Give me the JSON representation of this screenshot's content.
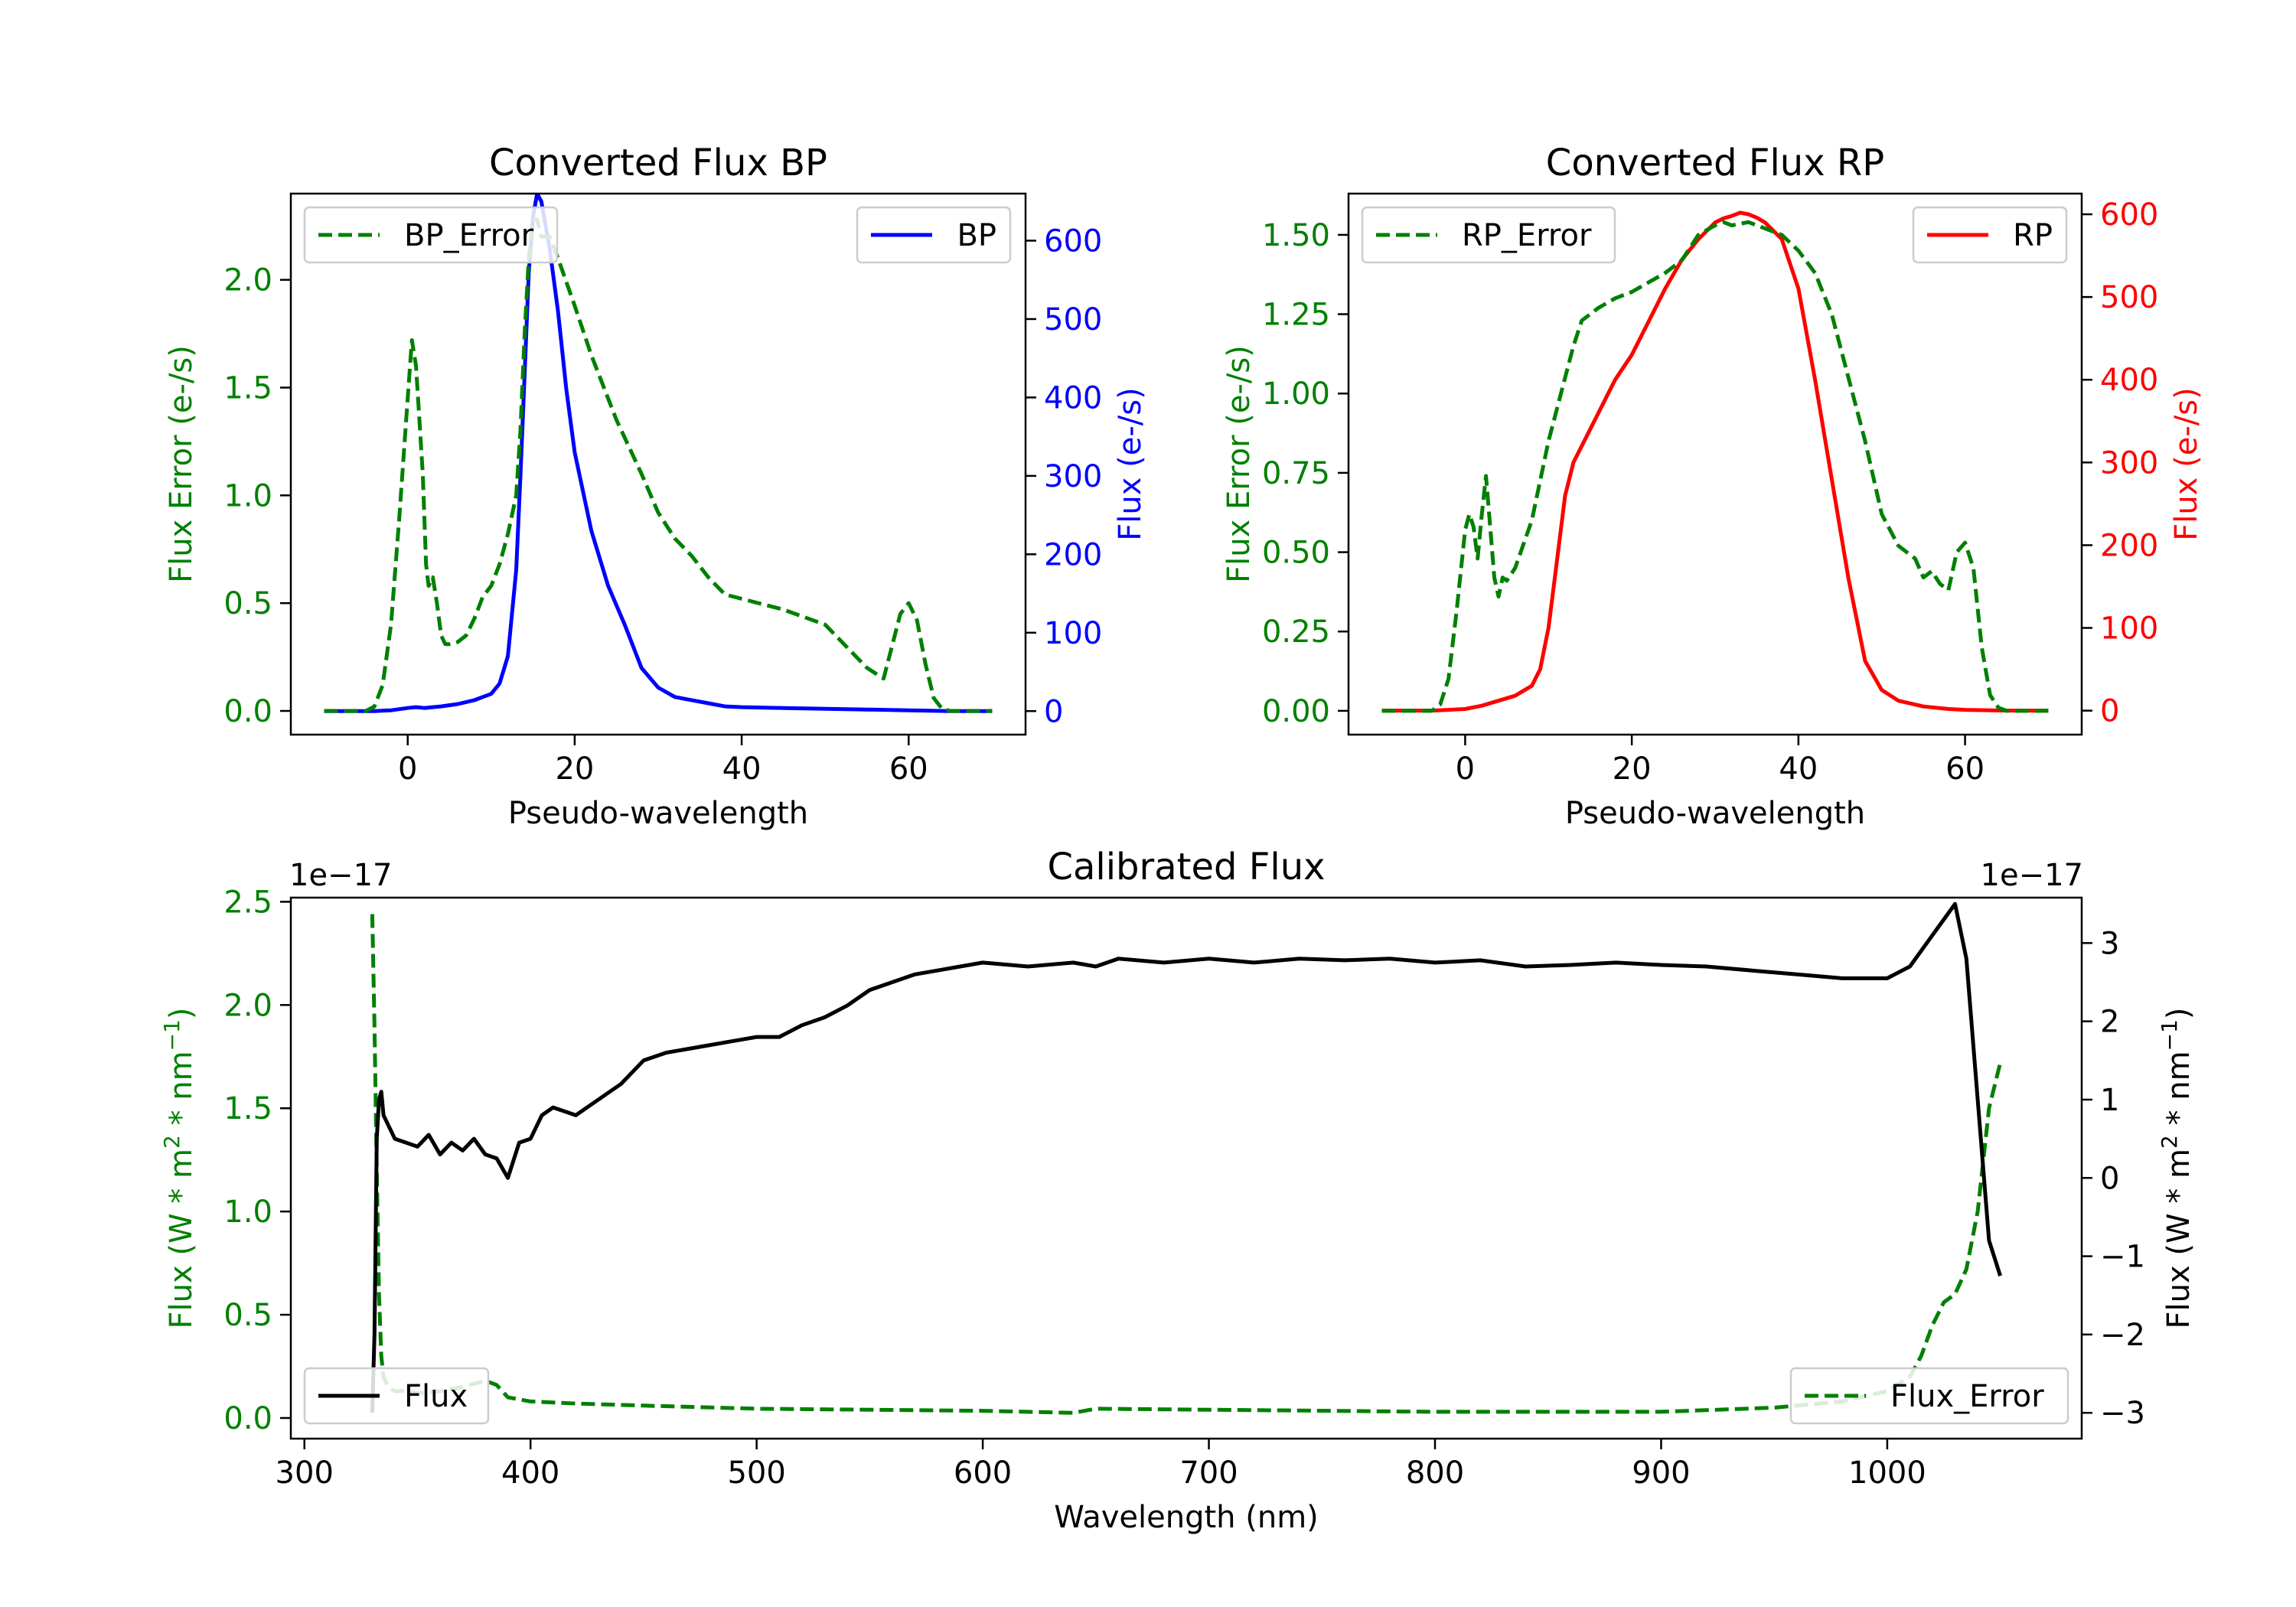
{
  "colors": {
    "green": "#008000",
    "blue": "#0000ff",
    "red": "#ff0000",
    "black": "#000000",
    "axis": "#000000",
    "legend_border": "#cccccc"
  },
  "chart_data": [
    {
      "type": "line",
      "title": "Converted Flux BP",
      "xlabel": "Pseudo-wavelength",
      "ylabel_left": "Flux Error (e-/s)",
      "ylabel_right": "Flux (e-/s)",
      "xlim": [
        -14,
        74
      ],
      "ylim_left": [
        -0.11,
        2.4
      ],
      "ylim_right": [
        -30,
        660
      ],
      "xticks": [
        0,
        20,
        40,
        60
      ],
      "yticks_left": [
        0.0,
        0.5,
        1.0,
        1.5,
        2.0
      ],
      "yticks_left_labels": [
        "0.0",
        "0.5",
        "1.0",
        "1.5",
        "2.0"
      ],
      "yticks_right": [
        0,
        100,
        200,
        300,
        400,
        500,
        600
      ],
      "yticks_right_labels": [
        "0",
        "100",
        "200",
        "300",
        "400",
        "500",
        "600"
      ],
      "legend_left": "BP_Error",
      "legend_right": "BP",
      "series": [
        {
          "name": "BP_Error",
          "axis": "left",
          "style": "dashed",
          "color": "#008000",
          "x": [
            -10,
            -5,
            -4,
            -3,
            -2,
            -1,
            0,
            0.5,
            1,
            1.8,
            2.2,
            2.5,
            3,
            3.5,
            4,
            4.5,
            5,
            6,
            7,
            8,
            9,
            10,
            11,
            12,
            13,
            13.5,
            14,
            14.5,
            15,
            15.5,
            16,
            17,
            18,
            20,
            22,
            25,
            28,
            30,
            32,
            34,
            36,
            38,
            40,
            45,
            50,
            55,
            57,
            58,
            59,
            60,
            61,
            62,
            63,
            64,
            65,
            70
          ],
          "y": [
            0,
            0,
            0.02,
            0.12,
            0.4,
            0.9,
            1.45,
            1.72,
            1.6,
            1.1,
            0.68,
            0.58,
            0.62,
            0.5,
            0.35,
            0.31,
            0.31,
            0.32,
            0.35,
            0.43,
            0.53,
            0.58,
            0.68,
            0.82,
            1.0,
            1.3,
            1.75,
            2.1,
            2.28,
            2.28,
            2.2,
            2.2,
            2.1,
            1.88,
            1.65,
            1.35,
            1.1,
            0.92,
            0.8,
            0.72,
            0.62,
            0.54,
            0.52,
            0.47,
            0.4,
            0.2,
            0.15,
            0.3,
            0.45,
            0.5,
            0.42,
            0.22,
            0.06,
            0.01,
            0,
            0
          ]
        },
        {
          "name": "BP",
          "axis": "right",
          "style": "solid",
          "color": "#0000ff",
          "x": [
            -10,
            -4,
            -2,
            0,
            1,
            2,
            3,
            4,
            6,
            8,
            10,
            11,
            12,
            13,
            13.5,
            14,
            14.5,
            15,
            15.5,
            16,
            16.5,
            17,
            18,
            19,
            20,
            22,
            24,
            26,
            28,
            30,
            32,
            34,
            36,
            38,
            40,
            45,
            50,
            55,
            60,
            65,
            70
          ],
          "y": [
            0,
            0,
            1,
            4,
            5,
            4,
            5,
            6,
            9,
            14,
            22,
            35,
            70,
            180,
            300,
            430,
            560,
            630,
            660,
            650,
            620,
            590,
            510,
            410,
            330,
            230,
            160,
            110,
            55,
            30,
            18,
            14,
            10,
            6,
            5,
            4,
            3,
            2,
            1,
            0,
            0
          ]
        }
      ]
    },
    {
      "type": "line",
      "title": "Converted Flux RP",
      "xlabel": "Pseudo-wavelength",
      "ylabel_left": "Flux Error (e-/s)",
      "ylabel_right": "Flux (e-/s)",
      "xlim": [
        -14,
        74
      ],
      "ylim_left": [
        -0.075,
        1.63
      ],
      "ylim_right": [
        -29,
        625
      ],
      "xticks": [
        0,
        20,
        40,
        60
      ],
      "yticks_left": [
        0.0,
        0.25,
        0.5,
        0.75,
        1.0,
        1.25,
        1.5
      ],
      "yticks_left_labels": [
        "0.00",
        "0.25",
        "0.50",
        "0.75",
        "1.00",
        "1.25",
        "1.50"
      ],
      "yticks_right": [
        0,
        100,
        200,
        300,
        400,
        500,
        600
      ],
      "yticks_right_labels": [
        "0",
        "100",
        "200",
        "300",
        "400",
        "500",
        "600"
      ],
      "legend_left": "RP_Error",
      "legend_right": "RP",
      "series": [
        {
          "name": "RP_Error",
          "axis": "left",
          "style": "dashed",
          "color": "#008000",
          "x": [
            -10,
            -4,
            -3,
            -2,
            -1,
            0,
            0.5,
            1,
            1.5,
            2,
            2.5,
            3,
            3.5,
            4,
            4.5,
            5,
            6,
            8,
            10,
            12,
            13,
            14,
            16,
            18,
            20,
            22,
            24,
            26,
            28,
            30,
            31,
            32,
            34,
            36,
            38,
            40,
            42,
            44,
            46,
            48,
            50,
            52,
            54,
            55,
            56,
            57,
            58,
            59,
            60,
            61,
            62,
            63,
            64,
            65,
            70
          ],
          "y": [
            0,
            0,
            0.02,
            0.1,
            0.32,
            0.57,
            0.62,
            0.58,
            0.48,
            0.62,
            0.74,
            0.58,
            0.42,
            0.36,
            0.42,
            0.41,
            0.45,
            0.6,
            0.85,
            1.05,
            1.15,
            1.23,
            1.27,
            1.3,
            1.32,
            1.35,
            1.38,
            1.42,
            1.5,
            1.53,
            1.54,
            1.53,
            1.54,
            1.52,
            1.5,
            1.45,
            1.38,
            1.25,
            1.05,
            0.85,
            0.62,
            0.52,
            0.48,
            0.42,
            0.44,
            0.4,
            0.38,
            0.5,
            0.53,
            0.45,
            0.2,
            0.05,
            0.01,
            0,
            0
          ]
        },
        {
          "name": "RP",
          "axis": "right",
          "style": "solid",
          "color": "#ff0000",
          "x": [
            -10,
            -4,
            -2,
            0,
            2,
            4,
            6,
            8,
            9,
            10,
            11,
            12,
            13,
            14,
            16,
            18,
            20,
            22,
            24,
            26,
            28,
            30,
            31,
            32,
            33,
            34,
            35,
            36,
            38,
            40,
            42,
            44,
            46,
            48,
            50,
            52,
            55,
            58,
            60,
            65,
            70
          ],
          "y": [
            0,
            0,
            1,
            2,
            6,
            12,
            18,
            30,
            50,
            100,
            180,
            260,
            300,
            320,
            360,
            400,
            430,
            470,
            510,
            545,
            570,
            590,
            595,
            598,
            602,
            600,
            596,
            590,
            570,
            510,
            400,
            280,
            160,
            60,
            25,
            12,
            5,
            2,
            1,
            0,
            0
          ]
        }
      ]
    },
    {
      "type": "line",
      "title": "Calibrated Flux",
      "xlabel": "Wavelength (nm)",
      "ylabel_left": "Flux (W * m2 * nm-1)",
      "ylabel_right": "Flux (W * m2 * nm-1)",
      "offset_left": "1e−17",
      "offset_right": "1e−17",
      "xlim": [
        294,
        1086
      ],
      "ylim_left": [
        -0.1,
        2.52
      ],
      "ylim_right": [
        -3.33,
        3.58
      ],
      "xticks": [
        300,
        400,
        500,
        600,
        700,
        800,
        900,
        1000
      ],
      "yticks_left": [
        0.0,
        0.5,
        1.0,
        1.5,
        2.0,
        2.5
      ],
      "yticks_left_labels": [
        "0.0",
        "0.5",
        "1.0",
        "1.5",
        "2.0",
        "2.5"
      ],
      "yticks_right": [
        -3,
        -2,
        -1,
        0,
        1,
        2,
        3
      ],
      "yticks_right_labels": [
        "−3",
        "−2",
        "−1",
        "0",
        "1",
        "2",
        "3"
      ],
      "legend_left": "Flux",
      "legend_right": "Flux_Error",
      "series": [
        {
          "name": "Flux_Error",
          "axis": "left",
          "style": "dashed",
          "color": "#008000",
          "x": [
            330,
            331,
            332,
            333,
            334,
            335,
            337,
            340,
            345,
            350,
            360,
            370,
            380,
            385,
            390,
            400,
            420,
            450,
            500,
            600,
            640,
            650,
            700,
            800,
            900,
            950,
            980,
            1000,
            1010,
            1015,
            1020,
            1025,
            1030,
            1035,
            1040,
            1045,
            1050
          ],
          "y": [
            2.44,
            1.9,
            1.2,
            0.6,
            0.3,
            0.2,
            0.15,
            0.13,
            0.13,
            0.12,
            0.13,
            0.15,
            0.18,
            0.16,
            0.1,
            0.08,
            0.07,
            0.06,
            0.045,
            0.035,
            0.025,
            0.045,
            0.04,
            0.03,
            0.03,
            0.05,
            0.08,
            0.13,
            0.2,
            0.3,
            0.45,
            0.56,
            0.6,
            0.72,
            1.0,
            1.5,
            1.72
          ]
        },
        {
          "name": "Flux",
          "axis": "right",
          "style": "solid",
          "color": "#000000",
          "x": [
            330,
            331,
            332,
            333,
            334,
            335,
            340,
            350,
            355,
            360,
            365,
            370,
            375,
            380,
            385,
            390,
            395,
            400,
            405,
            410,
            415,
            420,
            430,
            440,
            450,
            460,
            470,
            480,
            490,
            500,
            510,
            520,
            530,
            540,
            550,
            560,
            570,
            580,
            590,
            600,
            620,
            640,
            650,
            660,
            680,
            700,
            720,
            740,
            760,
            780,
            800,
            820,
            840,
            860,
            880,
            900,
            920,
            940,
            960,
            980,
            1000,
            1010,
            1020,
            1025,
            1030,
            1035,
            1040,
            1045,
            1050
          ],
          "y": [
            -3.0,
            -2.0,
            0.5,
            1.0,
            1.1,
            0.8,
            0.5,
            0.4,
            0.55,
            0.3,
            0.45,
            0.35,
            0.5,
            0.3,
            0.25,
            0.0,
            0.45,
            0.5,
            0.8,
            0.9,
            0.85,
            0.8,
            1.0,
            1.2,
            1.5,
            1.6,
            1.65,
            1.7,
            1.75,
            1.8,
            1.8,
            1.95,
            2.05,
            2.2,
            2.4,
            2.5,
            2.6,
            2.65,
            2.7,
            2.75,
            2.7,
            2.75,
            2.7,
            2.8,
            2.75,
            2.8,
            2.75,
            2.8,
            2.78,
            2.8,
            2.75,
            2.78,
            2.7,
            2.72,
            2.75,
            2.72,
            2.7,
            2.65,
            2.6,
            2.55,
            2.55,
            2.7,
            3.1,
            3.3,
            3.5,
            2.8,
            1.0,
            -0.8,
            -1.25
          ]
        }
      ]
    }
  ]
}
